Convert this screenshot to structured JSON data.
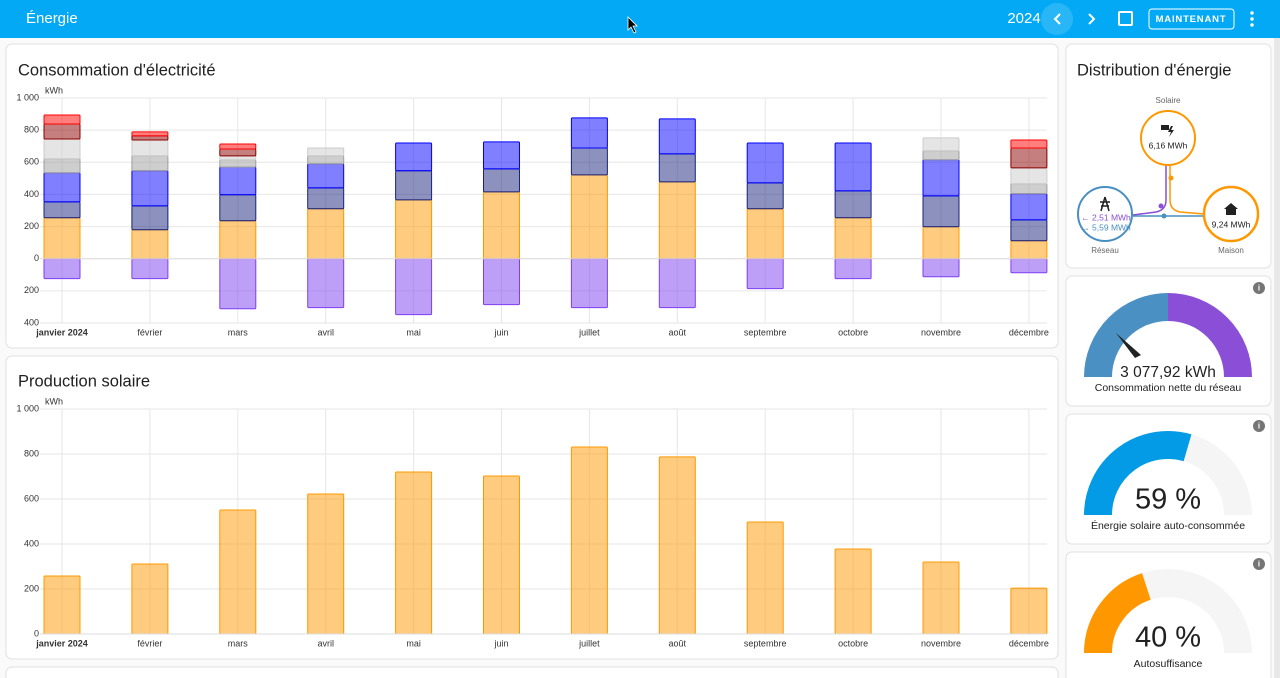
{
  "header": {
    "title": "Énergie",
    "year": "2024",
    "button": "MAINTENANT"
  },
  "chart_data": [
    {
      "type": "bar",
      "stacked": true,
      "title": "Consommation d'électricité",
      "unit": "kWh",
      "grid": true,
      "categories": [
        "janvier 2024",
        "février",
        "mars",
        "avril",
        "mai",
        "juin",
        "juillet",
        "août",
        "septembre",
        "octobre",
        "novembre",
        "décembre"
      ],
      "ylim": [
        -400,
        1000
      ],
      "yticks": [
        {
          "value": 1000,
          "label": "1 000"
        },
        800,
        600,
        400,
        200,
        0,
        {
          "value": -200,
          "label": "200"
        },
        {
          "value": -400,
          "label": "400"
        }
      ],
      "series": [
        {
          "color": "#ff9800",
          "values": [
            255,
            180,
            236,
            311,
            366,
            416,
            522,
            478,
            311,
            255,
            199,
            112
          ]
        },
        {
          "color": "#1a237e",
          "values": [
            99,
            149,
            162,
            130,
            181,
            143,
            167,
            174,
            161,
            167,
            192,
            130
          ]
        },
        {
          "color": "#0000ff",
          "values": [
            180,
            218,
            173,
            149,
            173,
            168,
            187,
            218,
            248,
            298,
            224,
            162
          ]
        },
        {
          "color": "#9e9e9e",
          "values": [
            87,
            93,
            44,
            50,
            0,
            0,
            0,
            0,
            0,
            0,
            56,
            62
          ]
        },
        {
          "color": "#cccccc",
          "values": [
            124,
            99,
            25,
            49,
            0,
            0,
            0,
            0,
            0,
            0,
            81,
            99
          ]
        },
        {
          "color": "#8b0000",
          "values": [
            93,
            25,
            43,
            0,
            0,
            0,
            0,
            0,
            0,
            0,
            0,
            124
          ]
        },
        {
          "color": "#ff0000",
          "values": [
            56,
            25,
            31,
            0,
            0,
            0,
            0,
            0,
            0,
            0,
            0,
            50
          ]
        },
        {
          "color": "#7e3ff2",
          "values": [
            -124,
            -124,
            -311,
            -304,
            -348,
            -286,
            -304,
            -304,
            -186,
            -124,
            -112,
            -87
          ]
        }
      ]
    },
    {
      "type": "bar",
      "title": "Production solaire",
      "unit": "kWh",
      "grid": true,
      "categories": [
        "janvier 2024",
        "février",
        "mars",
        "avril",
        "mai",
        "juin",
        "juillet",
        "août",
        "septembre",
        "octobre",
        "novembre",
        "décembre"
      ],
      "ylim": [
        0,
        1000
      ],
      "yticks": [
        {
          "value": 1000,
          "label": "1 000"
        },
        800,
        600,
        400,
        200,
        0
      ],
      "series": [
        {
          "color": "#ff9800",
          "values": [
            258,
            311,
            551,
            622,
            720,
            702,
            831,
            787,
            498,
            378,
            320,
            204
          ]
        }
      ]
    }
  ],
  "distribution": {
    "title": "Distribution d'énergie",
    "solar_label": "Solaire",
    "solar_value": "6,16 MWh",
    "grid_label": "Réseau",
    "grid_in": "← 2,51 MWh",
    "grid_out": "→ 5,59 MWh",
    "home_label": "Maison",
    "home_value": "9,24 MWh"
  },
  "gauges": [
    {
      "value_label": "3 077,92 kWh",
      "label": "Consommation nette du réseau"
    },
    {
      "value": 59,
      "value_label": "59 %",
      "label": "Énergie solaire auto-consommée",
      "color": "#039be5"
    },
    {
      "value": 40,
      "value_label": "40 %",
      "label": "Autosuffisance",
      "color": "#ff9800"
    }
  ]
}
